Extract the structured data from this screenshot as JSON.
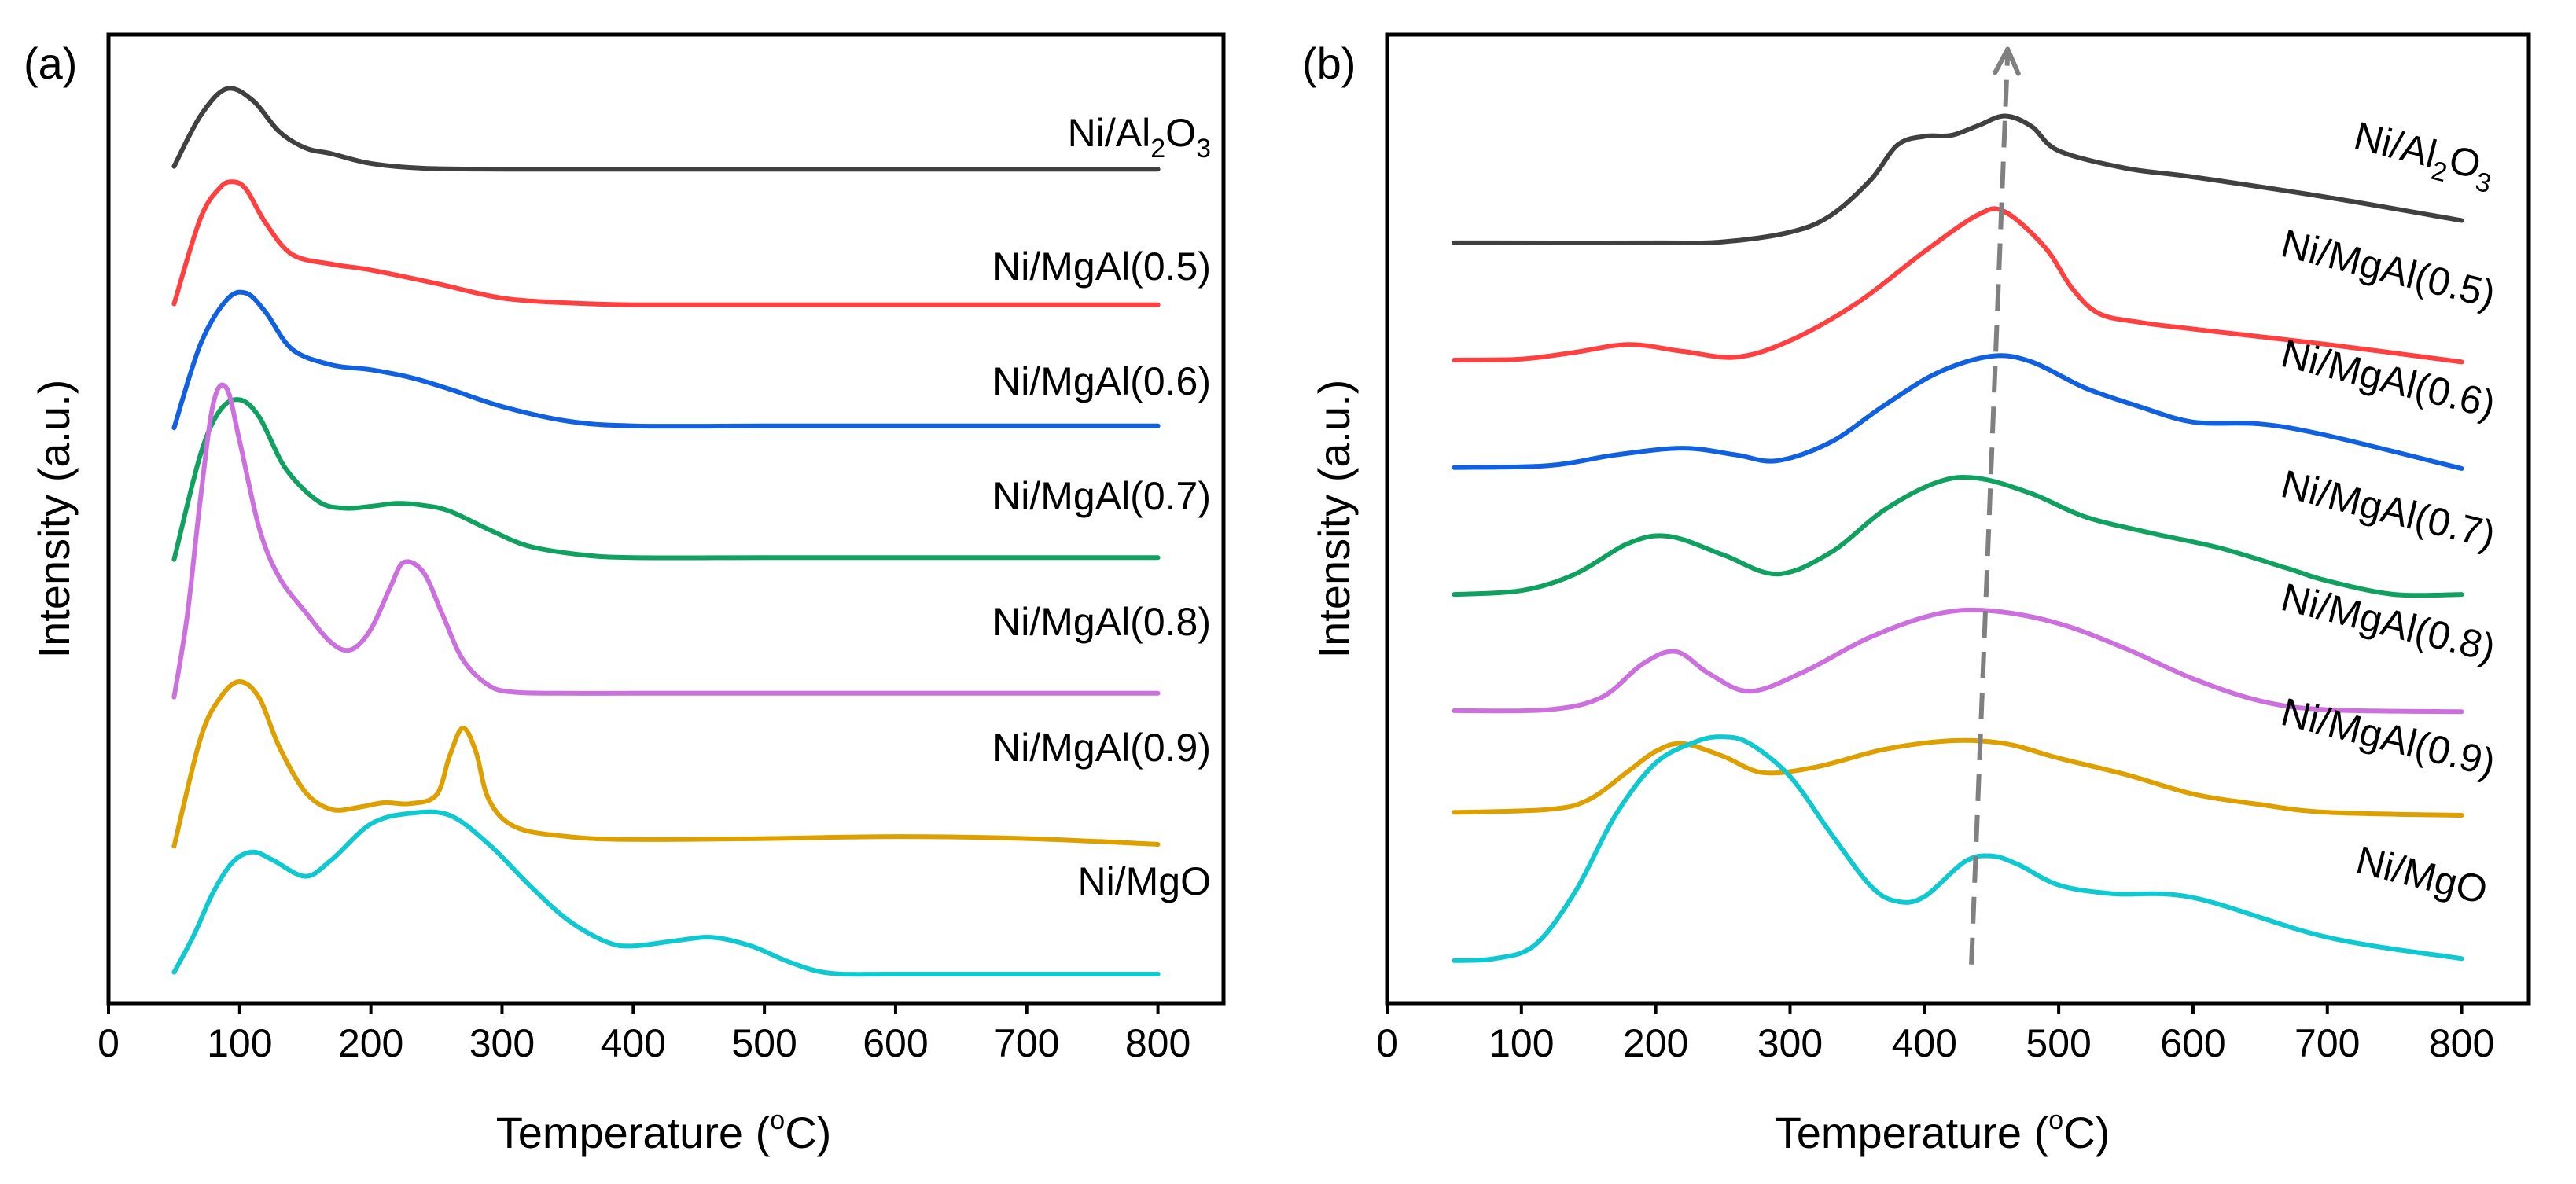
{
  "figure": {
    "panels": [
      {
        "id": "a",
        "panel_label": "(a)",
        "xlabel_main": "Temperature (",
        "xlabel_sup": "o",
        "xlabel_end": "C)",
        "ylabel": "Intensity (a.u.)"
      },
      {
        "id": "b",
        "panel_label": "(b)",
        "xlabel_main": "Temperature (",
        "xlabel_sup": "o",
        "xlabel_end": "C)",
        "ylabel": "Intensity (a.u.)"
      }
    ]
  },
  "chart_data": [
    {
      "type": "line",
      "panel": "a",
      "title": "",
      "xlabel": "Temperature (oC)",
      "ylabel": "Intensity (a.u.)",
      "xlim": [
        0,
        850
      ],
      "ylim": [
        0,
        100
      ],
      "xticks": [
        0,
        100,
        200,
        300,
        400,
        500,
        600,
        700,
        800
      ],
      "xtick_labels": [
        "0",
        "100",
        "200",
        "300",
        "400",
        "500",
        "600",
        "700",
        "800"
      ],
      "grid": false,
      "series": [
        {
          "name": "Ni/Al2O3",
          "label_main": "Ni/Al",
          "label_sub1": "2",
          "label_mid": "O",
          "label_sub2": "3",
          "color": "#404040",
          "x": [
            50,
            70,
            90,
            110,
            130,
            150,
            170,
            200,
            240,
            300,
            400,
            500,
            600,
            700,
            800
          ],
          "y": [
            86.4,
            91.6,
            94.4,
            93.2,
            90.0,
            88.3,
            87.7,
            86.7,
            86.2,
            86.1,
            86.1,
            86.1,
            86.1,
            86.1,
            86.1
          ]
        },
        {
          "name": "Ni/MgAl(0.5)",
          "color": "#ff4040",
          "x": [
            50,
            70,
            85,
            95,
            105,
            120,
            140,
            170,
            200,
            250,
            300,
            350,
            400,
            500,
            600,
            700,
            800
          ],
          "y": [
            72.2,
            81.0,
            84.2,
            84.8,
            84.0,
            80.5,
            77.3,
            76.3,
            75.7,
            74.3,
            72.8,
            72.3,
            72.1,
            72.1,
            72.1,
            72.1,
            72.1
          ]
        },
        {
          "name": "Ni/MgAl(0.6)",
          "color": "#1060e0",
          "x": [
            50,
            70,
            90,
            105,
            120,
            140,
            170,
            200,
            230,
            260,
            300,
            350,
            400,
            500,
            600,
            700,
            800
          ],
          "y": [
            59.4,
            68.0,
            72.6,
            73.3,
            71.3,
            67.5,
            65.9,
            65.4,
            64.6,
            63.4,
            61.6,
            60.1,
            59.6,
            59.6,
            59.6,
            59.6,
            59.6
          ]
        },
        {
          "name": "Ni/MgAl(0.7)",
          "color": "#10a060",
          "x": [
            50,
            70,
            85,
            100,
            115,
            135,
            160,
            180,
            200,
            220,
            240,
            260,
            290,
            320,
            360,
            400,
            500,
            600,
            700,
            800
          ],
          "y": [
            45.8,
            56.6,
            61.2,
            62.3,
            60.5,
            55.2,
            51.8,
            51.1,
            51.3,
            51.6,
            51.4,
            50.8,
            48.9,
            47.2,
            46.3,
            46.0,
            46.0,
            46.0,
            46.0,
            46.0
          ]
        },
        {
          "name": "Ni/MgAl(0.8)",
          "color": "#cc70dd",
          "x": [
            50,
            60,
            70,
            80,
            90,
            100,
            115,
            130,
            150,
            170,
            185,
            200,
            215,
            225,
            240,
            255,
            270,
            290,
            310,
            350,
            400,
            500,
            600,
            700,
            800
          ],
          "y": [
            31.6,
            40.0,
            52.0,
            62.0,
            63.5,
            58.0,
            49.0,
            44.0,
            40.4,
            37.2,
            36.5,
            38.6,
            43.0,
            45.5,
            44.5,
            40.0,
            35.5,
            32.8,
            32.1,
            32.0,
            32.0,
            32.0,
            32.0,
            32.0,
            32.0
          ]
        },
        {
          "name": "Ni/MgAl(0.9)",
          "color": "#dda000",
          "x": [
            50,
            70,
            85,
            100,
            115,
            130,
            150,
            170,
            190,
            210,
            230,
            250,
            260,
            270,
            280,
            290,
            310,
            350,
            400,
            500,
            600,
            700,
            800
          ],
          "y": [
            16.2,
            27.3,
            31.5,
            33.2,
            31.5,
            26.5,
            21.8,
            20.0,
            20.2,
            20.7,
            20.6,
            21.5,
            25.5,
            28.4,
            26.0,
            21.0,
            18.2,
            17.2,
            16.9,
            17.0,
            17.2,
            17.0,
            16.4
          ]
        },
        {
          "name": "Ni/MgO",
          "color": "#10c8d0",
          "x": [
            50,
            65,
            80,
            95,
            110,
            125,
            150,
            170,
            200,
            230,
            260,
            290,
            320,
            350,
            380,
            400,
            430,
            460,
            490,
            520,
            550,
            600,
            700,
            800
          ],
          "y": [
            3.2,
            7.0,
            11.5,
            14.6,
            15.6,
            14.8,
            13.1,
            14.8,
            18.5,
            19.6,
            19.4,
            16.4,
            12.3,
            8.6,
            6.3,
            5.9,
            6.4,
            6.8,
            5.9,
            4.2,
            3.1,
            3.0,
            3.0,
            3.0
          ]
        }
      ]
    },
    {
      "type": "line",
      "panel": "b",
      "title": "",
      "xlabel": "Temperature (oC)",
      "ylabel": "Intensity (a.u.)",
      "xlim": [
        0,
        850
      ],
      "ylim": [
        0,
        100
      ],
      "xticks": [
        0,
        100,
        200,
        300,
        400,
        500,
        600,
        700,
        800
      ],
      "xtick_labels": [
        "0",
        "100",
        "200",
        "300",
        "400",
        "500",
        "600",
        "700",
        "800"
      ],
      "grid": false,
      "annotation": "dashed arrow marking shift of main reduction peak (~435 °C at Ni/MgO to ~462 °C at Ni/Al2O3)",
      "arrow": {
        "x_start": 435,
        "y_start": 4.0,
        "x_end": 462,
        "y_end": 98.5,
        "color": "#808080"
      },
      "series": [
        {
          "name": "Ni/Al2O3",
          "label_main": "Ni/Al",
          "label_sub1": "2",
          "label_mid": "O",
          "label_sub2": "3",
          "color": "#404040",
          "x": [
            50,
            200,
            250,
            300,
            330,
            360,
            380,
            400,
            420,
            440,
            460,
            480,
            500,
            550,
            600,
            700,
            800
          ],
          "y": [
            78.5,
            78.5,
            78.6,
            79.6,
            81.3,
            85.0,
            88.6,
            89.5,
            89.6,
            90.6,
            91.6,
            90.5,
            88.0,
            86.2,
            85.3,
            83.2,
            80.8
          ]
        },
        {
          "name": "Ni/MgAl(0.5)",
          "color": "#ff4040",
          "x": [
            50,
            100,
            140,
            180,
            220,
            260,
            300,
            350,
            400,
            440,
            460,
            490,
            510,
            530,
            560,
            600,
            700,
            800
          ],
          "y": [
            66.4,
            66.5,
            67.2,
            68.0,
            67.3,
            66.7,
            68.4,
            72.3,
            77.6,
            81.4,
            81.7,
            78.0,
            73.8,
            71.2,
            70.3,
            69.6,
            68.0,
            66.2
          ]
        },
        {
          "name": "Ni/MgAl(0.6)",
          "color": "#1060e0",
          "x": [
            50,
            120,
            170,
            220,
            260,
            290,
            330,
            370,
            410,
            450,
            480,
            520,
            560,
            600,
            650,
            700,
            800
          ],
          "y": [
            55.3,
            55.5,
            56.6,
            57.3,
            56.6,
            56.0,
            57.9,
            61.7,
            65.1,
            66.8,
            66.2,
            63.5,
            61.6,
            60.0,
            59.8,
            58.6,
            55.2
          ]
        },
        {
          "name": "Ni/MgAl(0.7)",
          "color": "#10a060",
          "x": [
            50,
            100,
            140,
            180,
            210,
            250,
            290,
            330,
            370,
            410,
            440,
            480,
            520,
            570,
            620,
            670,
            700,
            750,
            800
          ],
          "y": [
            42.2,
            42.6,
            44.3,
            47.5,
            48.2,
            46.3,
            44.3,
            46.5,
            50.9,
            53.8,
            54.2,
            52.6,
            50.2,
            48.5,
            47.0,
            44.9,
            43.6,
            42.2,
            42.2
          ]
        },
        {
          "name": "Ni/MgAl(0.8)",
          "color": "#cc70dd",
          "x": [
            50,
            120,
            160,
            190,
            215,
            240,
            270,
            310,
            360,
            410,
            450,
            500,
            550,
            600,
            650,
            700,
            800
          ],
          "y": [
            30.2,
            30.3,
            31.6,
            35.0,
            36.3,
            34.0,
            32.2,
            34.2,
            37.8,
            40.2,
            40.5,
            39.2,
            36.6,
            33.5,
            31.2,
            30.3,
            30.1
          ]
        },
        {
          "name": "Ni/MgAl(0.9)",
          "color": "#dda000",
          "x": [
            50,
            120,
            150,
            180,
            200,
            220,
            250,
            280,
            320,
            370,
            420,
            460,
            500,
            550,
            600,
            650,
            700,
            800
          ],
          "y": [
            19.7,
            20.0,
            21.0,
            24.0,
            26.0,
            26.8,
            25.5,
            23.8,
            24.4,
            26.2,
            27.1,
            26.8,
            25.3,
            23.6,
            21.6,
            20.5,
            19.7,
            19.4
          ]
        },
        {
          "name": "Ni/MgO",
          "color": "#10c8d0",
          "x": [
            50,
            80,
            110,
            140,
            170,
            200,
            230,
            250,
            270,
            300,
            330,
            360,
            380,
            400,
            430,
            450,
            470,
            500,
            540,
            600,
            700,
            800
          ],
          "y": [
            4.4,
            4.6,
            6.0,
            11.5,
            19.4,
            24.8,
            27.0,
            27.5,
            26.8,
            23.4,
            17.6,
            12.1,
            10.5,
            11.0,
            14.6,
            15.2,
            14.3,
            12.2,
            11.3,
            10.9,
            6.8,
            4.6
          ]
        }
      ]
    }
  ]
}
